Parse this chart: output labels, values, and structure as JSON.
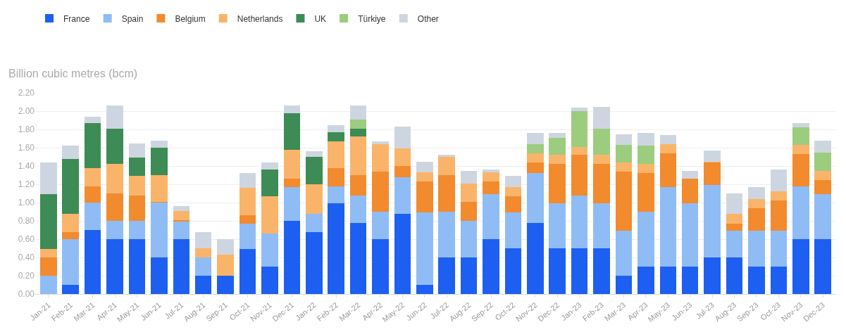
{
  "chart_data": {
    "type": "bar",
    "stacked": true,
    "ylabel": "Billion cubic metres (bcm)",
    "categories": [
      "Jan-21",
      "Feb-21",
      "Mar-21",
      "Apr-21",
      "May-21",
      "Jun-21",
      "Jul-21",
      "Aug-21",
      "Sep-21",
      "Oct-21",
      "Nov-21",
      "Dec-21",
      "Jan-22",
      "Feb-22",
      "Mar-22",
      "Apr-22",
      "May-22",
      "Jun-22",
      "Jul-22",
      "Aug-22",
      "Sep-22",
      "Oct-22",
      "Nov-22",
      "Dec-22",
      "Jan-23",
      "Feb-23",
      "Mar-23",
      "Apr-23",
      "May-23",
      "Jun-23",
      "Jul-23",
      "Aug-23",
      "Sep-23",
      "Oct-23",
      "Nov-23",
      "Dec-23"
    ],
    "series": [
      {
        "name": "France",
        "color": "#1d5ff0",
        "values": [
          0,
          0.1,
          0.7,
          0.6,
          0.6,
          0.4,
          0.6,
          0.2,
          0.2,
          0.49,
          0.3,
          0.8,
          0.68,
          0.99,
          0.78,
          0.6,
          0.88,
          0.1,
          0.4,
          0.4,
          0.6,
          0.5,
          0.78,
          0.5,
          0.5,
          0.5,
          0.2,
          0.3,
          0.3,
          0.3,
          0.4,
          0.4,
          0.3,
          0.3,
          0.6,
          0.6
        ]
      },
      {
        "name": "Spain",
        "color": "#8fbcf5",
        "values": [
          0.2,
          0.5,
          0.3,
          0.2,
          0.2,
          0.6,
          0.19,
          0.2,
          0,
          0.28,
          0.36,
          0.37,
          0.2,
          0.19,
          0.3,
          0.3,
          0.4,
          0.79,
          0.5,
          0.4,
          0.49,
          0.39,
          0.54,
          0.49,
          0.58,
          0.49,
          0.49,
          0.6,
          0.87,
          0.69,
          0.79,
          0.29,
          0.39,
          0.39,
          0.58,
          0.49
        ]
      },
      {
        "name": "Belgium",
        "color": "#f28a2e",
        "values": [
          0.2,
          0.08,
          0.18,
          0.3,
          0.28,
          0.01,
          0.02,
          0,
          0,
          0.09,
          0,
          0.09,
          0,
          0.2,
          0.22,
          0.44,
          0.12,
          0.34,
          0.4,
          0.21,
          0.14,
          0.18,
          0.12,
          0.43,
          0.44,
          0.43,
          0.65,
          0.42,
          0.37,
          0.27,
          0.25,
          0.08,
          0.25,
          0.33,
          0.35,
          0.16
        ]
      },
      {
        "name": "Netherlands",
        "color": "#f9b46a",
        "values": [
          0.09,
          0.2,
          0.2,
          0.32,
          0.21,
          0.29,
          0.1,
          0.1,
          0.23,
          0.3,
          0.41,
          0.32,
          0.32,
          0.29,
          0.42,
          0.3,
          0.19,
          0.1,
          0.2,
          0.2,
          0.1,
          0.1,
          0.1,
          0.1,
          0.09,
          0.1,
          0.1,
          0.1,
          0.1,
          0,
          0.01,
          0.11,
          0.1,
          0.1,
          0.1,
          0.1
        ]
      },
      {
        "name": "UK",
        "color": "#3d8b55",
        "values": [
          0.6,
          0.6,
          0.49,
          0.39,
          0.2,
          0.3,
          0,
          0,
          0,
          0,
          0.29,
          0.4,
          0.3,
          0.1,
          0.09,
          0,
          0,
          0,
          0,
          0,
          0,
          0,
          0,
          0,
          0,
          0,
          0,
          0,
          0,
          0,
          0,
          0,
          0,
          0,
          0,
          0
        ]
      },
      {
        "name": "Türkiye",
        "color": "#9ccc7d",
        "values": [
          0,
          0,
          0,
          0,
          0,
          0,
          0,
          0,
          0,
          0,
          0,
          0,
          0,
          0,
          0.1,
          0,
          0,
          0,
          0,
          0,
          0,
          0,
          0.1,
          0.19,
          0.39,
          0.29,
          0.19,
          0.2,
          0,
          0,
          0,
          0,
          0,
          0,
          0.19,
          0.2
        ]
      },
      {
        "name": "Other",
        "color": "#cdd6e0",
        "values": [
          0.35,
          0.14,
          0.07,
          0.25,
          0.16,
          0.08,
          0.05,
          0.18,
          0.17,
          0.16,
          0.08,
          0.08,
          0.06,
          0.08,
          0.15,
          0.03,
          0.24,
          0.12,
          0.02,
          0.14,
          0.03,
          0.12,
          0.12,
          0.05,
          0.04,
          0.24,
          0.12,
          0.14,
          0.1,
          0.09,
          0.12,
          0.22,
          0.13,
          0.24,
          0.05,
          0.13
        ]
      }
    ],
    "ylim": [
      0,
      2.2
    ],
    "yticks": [
      {
        "value": 0,
        "label": "0.00"
      },
      {
        "value": 0.2,
        "label": "0.20"
      },
      {
        "value": 0.4,
        "label": "0.40"
      },
      {
        "value": 0.6,
        "label": "0.60"
      },
      {
        "value": 0.8,
        "label": "0.80"
      },
      {
        "value": 1,
        "label": "1.00"
      },
      {
        "value": 1.2,
        "label": "1.20"
      },
      {
        "value": 1.4,
        "label": "1.40"
      },
      {
        "value": 1.6,
        "label": "1.60"
      },
      {
        "value": 1.8,
        "label": "1.80"
      },
      {
        "value": 2,
        "label": "2.00"
      },
      {
        "value": 2.2,
        "label": "2.20"
      }
    ],
    "grid": "y",
    "legend": "top left"
  }
}
